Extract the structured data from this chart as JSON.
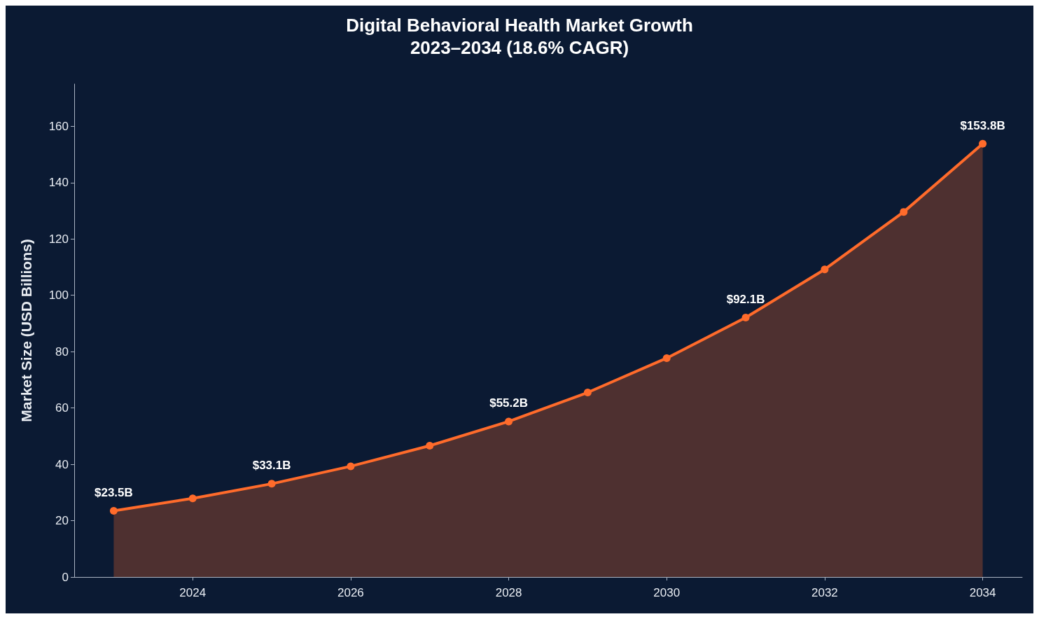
{
  "chart_data": {
    "type": "area",
    "title": "Digital Behavioral Health Market Growth",
    "subtitle": "2023–2034 (18.6% CAGR)",
    "ylabel": "Market Size (USD Billions)",
    "x": [
      2023,
      2024,
      2025,
      2026,
      2027,
      2028,
      2029,
      2030,
      2031,
      2032,
      2033,
      2034
    ],
    "series": [
      {
        "color": "#ff6b2b",
        "values": [
          23.5,
          27.9,
          33.1,
          39.3,
          46.6,
          55.2,
          65.5,
          77.7,
          92.1,
          109.2,
          129.6,
          153.8
        ],
        "value_labels": [
          "$23.5B",
          null,
          "$33.1B",
          null,
          null,
          "$55.2B",
          null,
          null,
          "$92.1B",
          null,
          null,
          "$153.8B"
        ]
      }
    ],
    "xlim": [
      2022.5,
      2034.5
    ],
    "xticks": [
      2024,
      2026,
      2028,
      2030,
      2032,
      2034
    ],
    "ylim": [
      0,
      175
    ],
    "yticks": [
      0,
      20,
      40,
      60,
      80,
      100,
      120,
      140,
      160
    ],
    "grid": false,
    "marker": "circle",
    "line_style": "solid"
  }
}
